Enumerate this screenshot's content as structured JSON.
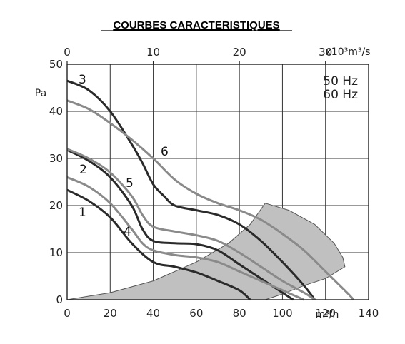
{
  "chart_data": {
    "type": "line",
    "title": "COURBES CARACTERISTIQUES",
    "ylabel": "Pa",
    "xlabel": "m³/h",
    "x2label": "x10³m³/s",
    "xlim": [
      0,
      140
    ],
    "ylim": [
      0,
      50
    ],
    "x2lim": [
      0,
      35
    ],
    "x_ticks": [
      "0",
      "20",
      "40",
      "60",
      "80",
      "100",
      "120",
      "140"
    ],
    "y_ticks": [
      "0",
      "10",
      "20",
      "30",
      "40",
      "50"
    ],
    "x2_ticks": [
      "0",
      "10",
      "20",
      "30"
    ],
    "grid": true,
    "legend": [
      "50 Hz",
      "60 Hz"
    ],
    "colors": {
      "dark": "#2a2a2a",
      "light": "#8a8a8a",
      "area": "#c0c0c0"
    },
    "series": [
      {
        "name": "1",
        "shade": "dark",
        "points": [
          [
            0,
            23.3
          ],
          [
            10,
            21
          ],
          [
            20,
            17.5
          ],
          [
            30,
            12
          ],
          [
            40,
            8
          ],
          [
            50,
            7
          ],
          [
            60,
            5.8
          ],
          [
            70,
            4
          ],
          [
            80,
            2
          ],
          [
            85,
            0
          ]
        ]
      },
      {
        "name": "2",
        "shade": "dark",
        "points": [
          [
            0,
            31.8
          ],
          [
            10,
            29.5
          ],
          [
            20,
            26
          ],
          [
            30,
            20
          ],
          [
            35,
            15
          ],
          [
            40,
            12.5
          ],
          [
            50,
            12
          ],
          [
            60,
            11.8
          ],
          [
            70,
            10.5
          ],
          [
            80,
            7.5
          ],
          [
            90,
            4.5
          ],
          [
            100,
            1.5
          ],
          [
            105,
            0
          ]
        ]
      },
      {
        "name": "3",
        "shade": "dark",
        "points": [
          [
            0,
            46.5
          ],
          [
            10,
            44.5
          ],
          [
            20,
            40
          ],
          [
            30,
            33
          ],
          [
            35,
            29
          ],
          [
            40,
            24.5
          ],
          [
            45,
            22
          ],
          [
            50,
            20
          ],
          [
            60,
            19
          ],
          [
            70,
            18
          ],
          [
            80,
            16
          ],
          [
            90,
            12.5
          ],
          [
            100,
            8
          ],
          [
            110,
            3
          ],
          [
            115,
            0
          ]
        ]
      },
      {
        "name": "4",
        "shade": "light",
        "points": [
          [
            0,
            26
          ],
          [
            10,
            24
          ],
          [
            20,
            20.5
          ],
          [
            30,
            15
          ],
          [
            35,
            12
          ],
          [
            40,
            10.5
          ],
          [
            50,
            9.5
          ],
          [
            60,
            9
          ],
          [
            70,
            8
          ],
          [
            80,
            6
          ],
          [
            90,
            4
          ],
          [
            100,
            2
          ],
          [
            110,
            0
          ]
        ]
      },
      {
        "name": "5",
        "shade": "light",
        "points": [
          [
            0,
            32
          ],
          [
            10,
            30
          ],
          [
            20,
            27
          ],
          [
            30,
            22
          ],
          [
            35,
            18
          ],
          [
            40,
            15.5
          ],
          [
            50,
            14.5
          ],
          [
            60,
            13.7
          ],
          [
            70,
            12.5
          ],
          [
            80,
            10
          ],
          [
            90,
            7
          ],
          [
            100,
            4
          ],
          [
            110,
            1.5
          ],
          [
            115,
            0
          ]
        ]
      },
      {
        "name": "6",
        "shade": "light",
        "points": [
          [
            0,
            42.3
          ],
          [
            10,
            40.5
          ],
          [
            20,
            37.5
          ],
          [
            30,
            34
          ],
          [
            40,
            30
          ],
          [
            50,
            25.5
          ],
          [
            60,
            22.5
          ],
          [
            70,
            20.5
          ],
          [
            80,
            19
          ],
          [
            90,
            17
          ],
          [
            100,
            14
          ],
          [
            110,
            10.5
          ],
          [
            120,
            6
          ],
          [
            130,
            1.5
          ],
          [
            133,
            0
          ]
        ]
      }
    ],
    "operating_area": [
      [
        0,
        0
      ],
      [
        20,
        1.5
      ],
      [
        40,
        4
      ],
      [
        60,
        8
      ],
      [
        75,
        12
      ],
      [
        85,
        16
      ],
      [
        92,
        20.5
      ],
      [
        103,
        19
      ],
      [
        115,
        16
      ],
      [
        124,
        12
      ],
      [
        128,
        9
      ],
      [
        129,
        7
      ],
      [
        120,
        4.5
      ],
      [
        110,
        3
      ],
      [
        100,
        1.2
      ],
      [
        92,
        0
      ]
    ]
  }
}
